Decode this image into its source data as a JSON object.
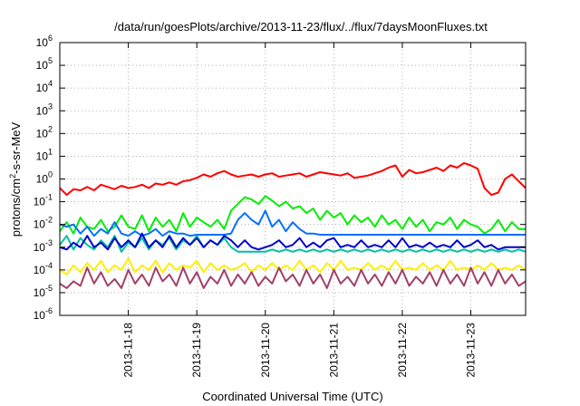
{
  "chart_data": {
    "type": "line",
    "title": "/data/run/goesPlots/archive/2013-11-23/flux/../flux/7daysMoonFluxes.txt",
    "xlabel": "Coordinated Universal Time (UTC)",
    "ylabel": "protons/cm²-s-sr-MeV",
    "ylabel_parts": {
      "before": "protons/cm",
      "sup": "2",
      "after": "-s-sr-MeV"
    },
    "yscale": "log",
    "ylim": [
      -6,
      6
    ],
    "y_ticks": [
      {
        "base": "10",
        "exp": "-6",
        "value": -6
      },
      {
        "base": "10",
        "exp": "-5",
        "value": -5
      },
      {
        "base": "10",
        "exp": "-4",
        "value": -4
      },
      {
        "base": "10",
        "exp": "-3",
        "value": -3
      },
      {
        "base": "10",
        "exp": "-2",
        "value": -2
      },
      {
        "base": "10",
        "exp": "-1",
        "value": -1
      },
      {
        "base": "10",
        "exp": "0",
        "value": 0
      },
      {
        "base": "10",
        "exp": "1",
        "value": 1
      },
      {
        "base": "10",
        "exp": "2",
        "value": 2
      },
      {
        "base": "10",
        "exp": "3",
        "value": 3
      },
      {
        "base": "10",
        "exp": "4",
        "value": 4
      },
      {
        "base": "10",
        "exp": "5",
        "value": 5
      },
      {
        "base": "10",
        "exp": "6",
        "value": 6
      }
    ],
    "xlim": [
      0,
      6.8
    ],
    "x_ticks": [
      {
        "label": "2013-11-18",
        "value": 1
      },
      {
        "label": "2013-11-19",
        "value": 2
      },
      {
        "label": "2013-11-20",
        "value": 3
      },
      {
        "label": "2013-11-21",
        "value": 4
      },
      {
        "label": "2013-11-22",
        "value": 5
      },
      {
        "label": "2013-11-23",
        "value": 6
      }
    ],
    "grid": true,
    "legend": "none",
    "series": [
      {
        "color": "#ff0000",
        "x": [
          0.0,
          0.1,
          0.2,
          0.3,
          0.4,
          0.5,
          0.6,
          0.7,
          0.8,
          0.9,
          1.0,
          1.1,
          1.2,
          1.3,
          1.4,
          1.5,
          1.6,
          1.7,
          1.8,
          1.9,
          2.0,
          2.1,
          2.2,
          2.3,
          2.4,
          2.5,
          2.6,
          2.7,
          2.8,
          2.9,
          3.0,
          3.1,
          3.2,
          3.3,
          3.4,
          3.5,
          3.6,
          3.7,
          3.8,
          3.9,
          4.0,
          4.1,
          4.2,
          4.3,
          4.4,
          4.5,
          4.6,
          4.7,
          4.8,
          4.9,
          5.0,
          5.1,
          5.2,
          5.3,
          5.4,
          5.5,
          5.6,
          5.7,
          5.8,
          5.9,
          6.0,
          6.1,
          6.2,
          6.3,
          6.4,
          6.5,
          6.6,
          6.7,
          6.8
        ],
        "y": [
          -0.4,
          -0.7,
          -0.45,
          -0.5,
          -0.35,
          -0.5,
          -0.25,
          -0.35,
          -0.45,
          -0.3,
          -0.4,
          -0.35,
          -0.25,
          -0.4,
          -0.2,
          -0.25,
          -0.15,
          -0.25,
          -0.1,
          -0.05,
          0.05,
          0.2,
          0.1,
          0.25,
          0.35,
          0.2,
          0.1,
          0.15,
          0.2,
          0.1,
          0.2,
          0.25,
          0.1,
          0.15,
          0.2,
          0.25,
          0.1,
          0.2,
          0.3,
          0.25,
          0.2,
          0.15,
          0.25,
          0.05,
          0.1,
          0.15,
          0.25,
          0.35,
          0.5,
          0.6,
          0.1,
          0.4,
          0.25,
          0.3,
          0.4,
          0.5,
          0.35,
          0.6,
          0.5,
          0.7,
          0.6,
          0.45,
          -0.4,
          -0.7,
          -0.6,
          0.0,
          0.2,
          -0.1,
          -0.4
        ]
      },
      {
        "color": "#00ee00",
        "x": [
          0.0,
          0.1,
          0.2,
          0.3,
          0.4,
          0.5,
          0.6,
          0.7,
          0.8,
          0.9,
          1.0,
          1.1,
          1.2,
          1.3,
          1.4,
          1.5,
          1.6,
          1.7,
          1.8,
          1.9,
          2.0,
          2.1,
          2.2,
          2.3,
          2.4,
          2.5,
          2.6,
          2.7,
          2.8,
          2.9,
          3.0,
          3.1,
          3.2,
          3.3,
          3.4,
          3.5,
          3.6,
          3.7,
          3.8,
          3.9,
          4.0,
          4.1,
          4.2,
          4.3,
          4.4,
          4.5,
          4.6,
          4.7,
          4.8,
          4.9,
          5.0,
          5.1,
          5.2,
          5.3,
          5.4,
          5.5,
          5.6,
          5.7,
          5.8,
          5.9,
          6.0,
          6.1,
          6.2,
          6.3,
          6.4,
          6.5,
          6.6,
          6.7,
          6.8
        ],
        "y": [
          -2.3,
          -1.9,
          -2.4,
          -1.7,
          -2.1,
          -2.2,
          -1.8,
          -2.3,
          -2.1,
          -1.6,
          -2.1,
          -2.2,
          -1.6,
          -2.3,
          -1.7,
          -2.1,
          -1.8,
          -2.3,
          -1.5,
          -2.1,
          -1.7,
          -1.9,
          -2.1,
          -1.8,
          -2.2,
          -1.4,
          -1.1,
          -0.8,
          -0.9,
          -1.1,
          -0.75,
          -0.95,
          -1.2,
          -1.0,
          -1.3,
          -1.2,
          -1.5,
          -1.3,
          -1.8,
          -1.4,
          -1.7,
          -1.5,
          -2.0,
          -1.6,
          -1.9,
          -1.7,
          -2.1,
          -1.6,
          -2.0,
          -1.8,
          -2.2,
          -1.7,
          -2.1,
          -1.8,
          -2.3,
          -1.9,
          -2.0,
          -1.7,
          -2.2,
          -1.8,
          -2.0,
          -2.1,
          -2.4,
          -2.2,
          -1.8,
          -2.3,
          -1.9,
          -2.2,
          -2.2
        ]
      },
      {
        "color": "#0070ff",
        "x": [
          0.0,
          0.1,
          0.2,
          0.3,
          0.4,
          0.5,
          0.6,
          0.7,
          0.8,
          0.9,
          1.0,
          1.1,
          1.2,
          1.3,
          1.4,
          1.5,
          1.6,
          1.7,
          1.8,
          1.9,
          2.0,
          2.1,
          2.2,
          2.3,
          2.4,
          2.5,
          2.6,
          2.7,
          2.8,
          2.9,
          3.0,
          3.1,
          3.2,
          3.3,
          3.4,
          3.5,
          3.6,
          3.7,
          3.8,
          3.9,
          4.0,
          4.1,
          4.2,
          4.3,
          4.4,
          4.5,
          4.6,
          4.7,
          4.8,
          4.9,
          5.0,
          5.1,
          5.2,
          5.3,
          5.4,
          5.5,
          5.6,
          5.7,
          5.8,
          5.9,
          6.0,
          6.1,
          6.2,
          6.3,
          6.4,
          6.5,
          6.6,
          6.7,
          6.8
        ],
        "y": [
          -2.0,
          -2.1,
          -2.0,
          -2.4,
          -2.1,
          -2.5,
          -2.2,
          -2.4,
          -1.9,
          -2.4,
          -2.5,
          -2.3,
          -2.5,
          -2.4,
          -2.2,
          -2.5,
          -2.3,
          -2.4,
          -2.4,
          -2.5,
          -2.45,
          -2.45,
          -2.45,
          -2.45,
          -2.45,
          -2.4,
          -1.8,
          -1.5,
          -1.8,
          -2.0,
          -1.4,
          -2.1,
          -1.8,
          -2.3,
          -1.9,
          -2.2,
          -2.4,
          -2.4,
          -2.45,
          -2.45,
          -2.45,
          -2.45,
          -2.45,
          -2.45,
          -2.45,
          -2.45,
          -2.45,
          -2.45,
          -2.45,
          -2.45,
          -2.45,
          -2.45,
          -2.45,
          -2.45,
          -2.45,
          -2.45,
          -2.45,
          -2.45,
          -2.45,
          -2.45,
          -2.45,
          -2.45,
          -2.45,
          -2.45,
          -2.45,
          -2.45,
          -2.45,
          -2.45,
          -2.45
        ]
      },
      {
        "color": "#00c0a0",
        "x": [
          0.0,
          0.1,
          0.2,
          0.3,
          0.4,
          0.5,
          0.6,
          0.7,
          0.8,
          0.9,
          1.0,
          1.1,
          1.2,
          1.3,
          1.4,
          1.5,
          1.6,
          1.7,
          1.8,
          1.9,
          2.0,
          2.1,
          2.2,
          2.3,
          2.4,
          2.5,
          2.6,
          2.7,
          2.8,
          2.9,
          3.0,
          3.1,
          3.2,
          3.3,
          3.4,
          3.5,
          3.6,
          3.7,
          3.8,
          3.9,
          4.0,
          4.1,
          4.2,
          4.3,
          4.4,
          4.5,
          4.6,
          4.7,
          4.8,
          4.9,
          5.0,
          5.1,
          5.2,
          5.3,
          5.4,
          5.5,
          5.6,
          5.7,
          5.8,
          5.9,
          6.0,
          6.1,
          6.2,
          6.3,
          6.4,
          6.5,
          6.6,
          6.7,
          6.8
        ],
        "y": [
          -2.9,
          -2.5,
          -3.1,
          -2.6,
          -2.9,
          -3.1,
          -2.7,
          -3.0,
          -2.5,
          -3.2,
          -2.8,
          -3.0,
          -2.6,
          -3.1,
          -2.7,
          -2.9,
          -2.6,
          -3.1,
          -2.7,
          -2.9,
          -2.5,
          -3.0,
          -2.7,
          -2.9,
          -2.6,
          -3.0,
          -3.2,
          -3.2,
          -3.2,
          -3.2,
          -3.2,
          -3.1,
          -3.2,
          -3.1,
          -3.2,
          -3.1,
          -3.2,
          -3.1,
          -3.2,
          -3.1,
          -3.2,
          -3.1,
          -3.2,
          -3.1,
          -3.2,
          -3.1,
          -3.2,
          -3.1,
          -3.2,
          -3.1,
          -3.2,
          -3.1,
          -3.2,
          -3.1,
          -3.2,
          -3.1,
          -3.2,
          -3.1,
          -3.2,
          -3.1,
          -3.2,
          -3.1,
          -3.2,
          -3.1,
          -3.2,
          -3.1,
          -3.2,
          -3.1,
          -3.2
        ]
      },
      {
        "color": "#0000cc",
        "x": [
          0.0,
          0.1,
          0.2,
          0.3,
          0.4,
          0.5,
          0.6,
          0.7,
          0.8,
          0.9,
          1.0,
          1.1,
          1.2,
          1.3,
          1.4,
          1.5,
          1.6,
          1.7,
          1.8,
          1.9,
          2.0,
          2.1,
          2.2,
          2.3,
          2.4,
          2.5,
          2.6,
          2.7,
          2.8,
          2.9,
          3.0,
          3.1,
          3.2,
          3.3,
          3.4,
          3.5,
          3.6,
          3.7,
          3.8,
          3.9,
          4.0,
          4.1,
          4.2,
          4.3,
          4.4,
          4.5,
          4.6,
          4.7,
          4.8,
          4.9,
          5.0,
          5.1,
          5.2,
          5.3,
          5.4,
          5.5,
          5.6,
          5.7,
          5.8,
          5.9,
          6.0,
          6.1,
          6.2,
          6.3,
          6.4,
          6.5,
          6.6,
          6.7,
          6.8
        ],
        "y": [
          -3.0,
          -3.1,
          -2.8,
          -3.0,
          -2.5,
          -3.0,
          -2.8,
          -3.1,
          -2.6,
          -3.0,
          -2.7,
          -3.0,
          -2.4,
          -3.0,
          -2.7,
          -3.0,
          -2.5,
          -3.0,
          -2.6,
          -2.9,
          -2.6,
          -3.0,
          -2.7,
          -2.9,
          -2.5,
          -2.7,
          -3.0,
          -2.7,
          -3.0,
          -3.1,
          -3.0,
          -2.9,
          -2.7,
          -3.0,
          -2.9,
          -2.6,
          -3.0,
          -2.8,
          -3.0,
          -2.7,
          -2.6,
          -3.0,
          -2.9,
          -3.0,
          -2.7,
          -3.0,
          -2.9,
          -3.0,
          -2.7,
          -3.0,
          -2.6,
          -3.0,
          -2.9,
          -3.0,
          -2.8,
          -3.0,
          -2.9,
          -3.0,
          -2.7,
          -3.0,
          -2.9,
          -2.7,
          -3.0,
          -2.9,
          -3.1,
          -3.0,
          -3.0,
          -3.0,
          -3.0
        ]
      },
      {
        "color": "#ffee00",
        "x": [
          0.0,
          0.1,
          0.2,
          0.3,
          0.4,
          0.5,
          0.6,
          0.7,
          0.8,
          0.9,
          1.0,
          1.1,
          1.2,
          1.3,
          1.4,
          1.5,
          1.6,
          1.7,
          1.8,
          1.9,
          2.0,
          2.1,
          2.2,
          2.3,
          2.4,
          2.5,
          2.6,
          2.7,
          2.8,
          2.9,
          3.0,
          3.1,
          3.2,
          3.3,
          3.4,
          3.5,
          3.6,
          3.7,
          3.8,
          3.9,
          4.0,
          4.1,
          4.2,
          4.3,
          4.4,
          4.5,
          4.6,
          4.7,
          4.8,
          4.9,
          5.0,
          5.1,
          5.2,
          5.3,
          5.4,
          5.5,
          5.6,
          5.7,
          5.8,
          5.9,
          6.0,
          6.1,
          6.2,
          6.3,
          6.4,
          6.5,
          6.6,
          6.7,
          6.8
        ],
        "y": [
          -4.0,
          -4.2,
          -3.8,
          -4.1,
          -3.7,
          -4.0,
          -3.6,
          -4.1,
          -3.8,
          -4.0,
          -3.5,
          -4.1,
          -3.8,
          -4.0,
          -3.6,
          -4.1,
          -3.7,
          -4.0,
          -3.8,
          -3.9,
          -3.6,
          -4.1,
          -3.7,
          -4.0,
          -3.8,
          -4.0,
          -3.9,
          -3.7,
          -4.1,
          -3.8,
          -4.0,
          -3.7,
          -4.0,
          -3.8,
          -4.0,
          -3.6,
          -4.0,
          -3.8,
          -4.1,
          -3.7,
          -4.0,
          -3.6,
          -4.0,
          -3.9,
          -4.0,
          -3.7,
          -4.0,
          -3.8,
          -4.0,
          -3.6,
          -4.0,
          -3.9,
          -4.0,
          -3.7,
          -4.0,
          -3.8,
          -4.0,
          -3.6,
          -4.0,
          -3.9,
          -4.0,
          -3.8,
          -4.0,
          -3.7,
          -4.0,
          -3.9,
          -4.0,
          -3.8,
          -4.0
        ]
      },
      {
        "color": "#a0406a",
        "x": [
          0.0,
          0.1,
          0.2,
          0.3,
          0.4,
          0.5,
          0.6,
          0.7,
          0.8,
          0.9,
          1.0,
          1.1,
          1.2,
          1.3,
          1.4,
          1.5,
          1.6,
          1.7,
          1.8,
          1.9,
          2.0,
          2.1,
          2.2,
          2.3,
          2.4,
          2.5,
          2.6,
          2.7,
          2.8,
          2.9,
          3.0,
          3.1,
          3.2,
          3.3,
          3.4,
          3.5,
          3.6,
          3.7,
          3.8,
          3.9,
          4.0,
          4.1,
          4.2,
          4.3,
          4.4,
          4.5,
          4.6,
          4.7,
          4.8,
          4.9,
          5.0,
          5.1,
          5.2,
          5.3,
          5.4,
          5.5,
          5.6,
          5.7,
          5.8,
          5.9,
          6.0,
          6.1,
          6.2,
          6.3,
          6.4,
          6.5,
          6.6,
          6.7,
          6.8
        ],
        "y": [
          -4.6,
          -4.8,
          -4.5,
          -4.7,
          -3.9,
          -4.6,
          -4.1,
          -4.7,
          -4.4,
          -4.8,
          -4.0,
          -4.6,
          -4.2,
          -4.7,
          -3.9,
          -4.5,
          -4.2,
          -4.7,
          -3.9,
          -4.6,
          -4.1,
          -4.8,
          -4.3,
          -4.6,
          -4.0,
          -4.7,
          -4.2,
          -4.6,
          -4.1,
          -4.7,
          -4.3,
          -4.6,
          -3.9,
          -4.5,
          -4.2,
          -4.7,
          -4.0,
          -4.6,
          -4.2,
          -4.8,
          -4.0,
          -4.6,
          -4.3,
          -4.7,
          -4.0,
          -4.6,
          -4.2,
          -4.7,
          -4.1,
          -4.6,
          -4.0,
          -4.7,
          -4.3,
          -4.6,
          -4.1,
          -4.7,
          -4.0,
          -4.6,
          -4.2,
          -4.7,
          -3.9,
          -4.6,
          -4.1,
          -4.7,
          -4.0,
          -4.6,
          -4.2,
          -4.7,
          -4.5
        ]
      }
    ]
  }
}
